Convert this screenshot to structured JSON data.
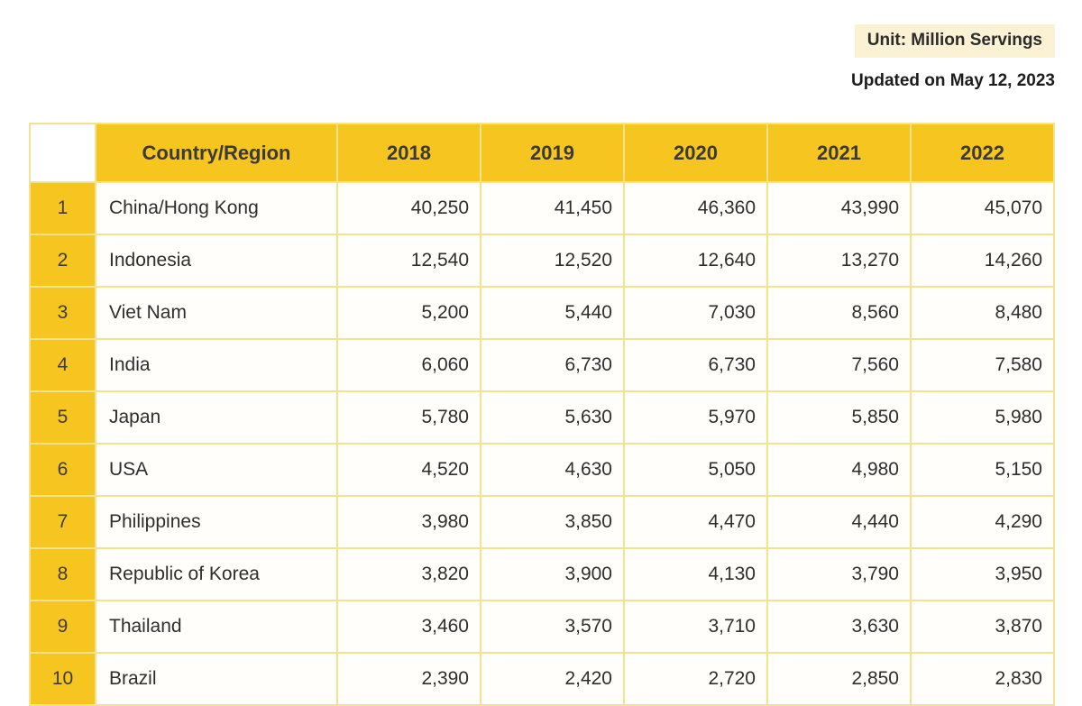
{
  "meta": {
    "unit_label": "Unit: Million Servings",
    "updated_label": "Updated on May 12, 2023"
  },
  "chart_data": {
    "type": "table",
    "unit": "Million Servings",
    "columns": [
      "Country/Region",
      "2018",
      "2019",
      "2020",
      "2021",
      "2022"
    ],
    "rows": [
      {
        "rank": "1",
        "country": "China/Hong Kong",
        "values": [
          "40,250",
          "41,450",
          "46,360",
          "43,990",
          "45,070"
        ]
      },
      {
        "rank": "2",
        "country": "Indonesia",
        "values": [
          "12,540",
          "12,520",
          "12,640",
          "13,270",
          "14,260"
        ]
      },
      {
        "rank": "3",
        "country": "Viet Nam",
        "values": [
          "5,200",
          "5,440",
          "7,030",
          "8,560",
          "8,480"
        ]
      },
      {
        "rank": "4",
        "country": "India",
        "values": [
          "6,060",
          "6,730",
          "6,730",
          "7,560",
          "7,580"
        ]
      },
      {
        "rank": "5",
        "country": "Japan",
        "values": [
          "5,780",
          "5,630",
          "5,970",
          "5,850",
          "5,980"
        ]
      },
      {
        "rank": "6",
        "country": "USA",
        "values": [
          "4,520",
          "4,630",
          "5,050",
          "4,980",
          "5,150"
        ]
      },
      {
        "rank": "7",
        "country": "Philippines",
        "values": [
          "3,980",
          "3,850",
          "4,470",
          "4,440",
          "4,290"
        ]
      },
      {
        "rank": "8",
        "country": "Republic of Korea",
        "values": [
          "3,820",
          "3,900",
          "4,130",
          "3,790",
          "3,950"
        ]
      },
      {
        "rank": "9",
        "country": "Thailand",
        "values": [
          "3,460",
          "3,570",
          "3,710",
          "3,630",
          "3,870"
        ]
      },
      {
        "rank": "10",
        "country": "Brazil",
        "values": [
          "2,390",
          "2,420",
          "2,720",
          "2,850",
          "2,830"
        ]
      }
    ]
  },
  "colors": {
    "header_yellow": "#F7C51F",
    "border_gold": "#F3E290",
    "badge_bg": "#FBF1D3",
    "text_dark": "#2F2F2F"
  }
}
